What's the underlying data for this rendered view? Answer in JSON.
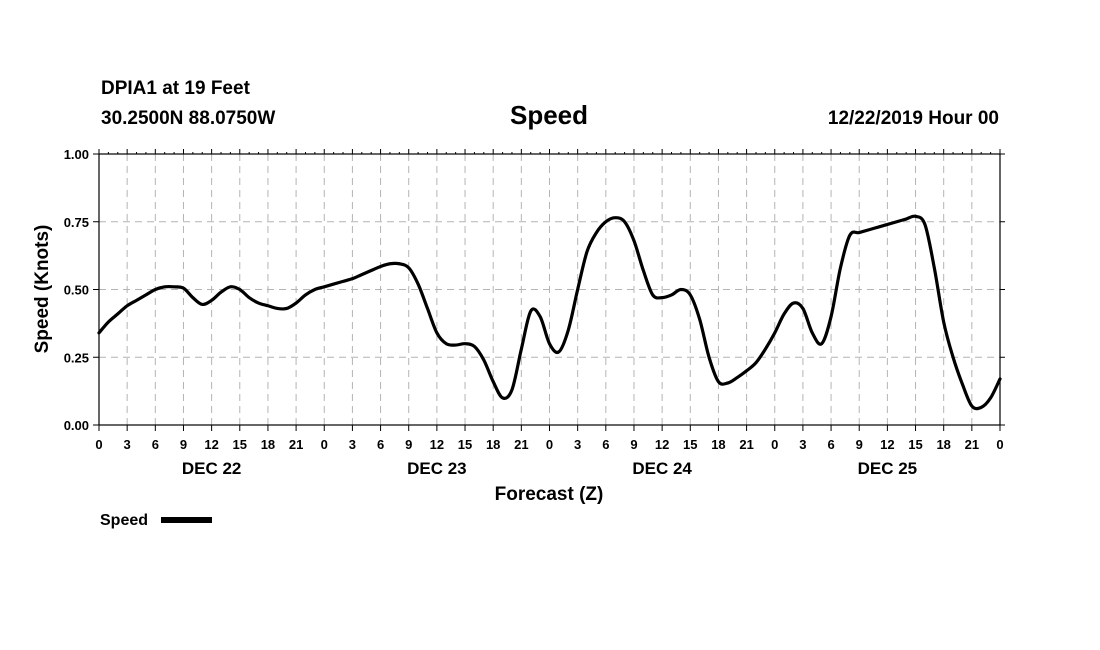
{
  "header": {
    "station": "DPIA1 at 19 Feet",
    "location": "30.2500N 88.0750W",
    "title": "Speed",
    "run": "12/22/2019 Hour 00"
  },
  "chart_data": {
    "type": "line",
    "title": "Speed",
    "xlabel": "Forecast (Z)",
    "ylabel": "Speed (Knots)",
    "x_unit": "forecast hour from 12/22/2019 00Z",
    "xlim": [
      0,
      96
    ],
    "ylim": [
      0,
      1
    ],
    "grid": true,
    "y_ticks": [
      "0.00",
      "0.25",
      "0.50",
      "0.75",
      "1.00"
    ],
    "y_tick_values": [
      0,
      0.25,
      0.5,
      0.75,
      1.0
    ],
    "x_tick_labels": [
      "0",
      "3",
      "6",
      "9",
      "12",
      "15",
      "18",
      "21",
      "0",
      "3",
      "6",
      "9",
      "12",
      "15",
      "18",
      "21",
      "0",
      "3",
      "6",
      "9",
      "12",
      "15",
      "18",
      "21",
      "0",
      "3",
      "6",
      "9",
      "12",
      "15",
      "18",
      "21",
      "0"
    ],
    "day_labels": [
      {
        "label": "DEC 22",
        "hour": 12
      },
      {
        "label": "DEC 23",
        "hour": 36
      },
      {
        "label": "DEC 24",
        "hour": 60
      },
      {
        "label": "DEC 25",
        "hour": 84
      }
    ],
    "legend_placement": "bottom-left",
    "series": [
      {
        "name": "Speed",
        "color": "#000000",
        "x": [
          0,
          1,
          2,
          3,
          4,
          5,
          6,
          7,
          8,
          9,
          10,
          11,
          12,
          13,
          14,
          15,
          16,
          17,
          18,
          19,
          20,
          21,
          22,
          23,
          24,
          25,
          26,
          27,
          28,
          29,
          30,
          31,
          32,
          33,
          34,
          35,
          36,
          37,
          38,
          39,
          40,
          41,
          42,
          43,
          44,
          45,
          46,
          47,
          48,
          49,
          50,
          51,
          52,
          53,
          54,
          55,
          56,
          57,
          58,
          59,
          60,
          61,
          62,
          63,
          64,
          65,
          66,
          67,
          68,
          69,
          70,
          71,
          72,
          73,
          74,
          75,
          76,
          77,
          78,
          79,
          80,
          81,
          82,
          83,
          84,
          85,
          86,
          87,
          88,
          89,
          90,
          91,
          92,
          93,
          94,
          95,
          96
        ],
        "values": [
          0.34,
          0.38,
          0.41,
          0.44,
          0.46,
          0.48,
          0.5,
          0.51,
          0.51,
          0.505,
          0.47,
          0.445,
          0.46,
          0.49,
          0.51,
          0.5,
          0.47,
          0.45,
          0.44,
          0.43,
          0.43,
          0.45,
          0.48,
          0.5,
          0.51,
          0.52,
          0.53,
          0.54,
          0.555,
          0.57,
          0.585,
          0.595,
          0.595,
          0.58,
          0.52,
          0.43,
          0.34,
          0.3,
          0.295,
          0.3,
          0.29,
          0.24,
          0.16,
          0.1,
          0.13,
          0.28,
          0.42,
          0.4,
          0.3,
          0.27,
          0.35,
          0.5,
          0.64,
          0.71,
          0.75,
          0.765,
          0.75,
          0.68,
          0.57,
          0.48,
          0.47,
          0.48,
          0.5,
          0.48,
          0.39,
          0.25,
          0.16,
          0.155,
          0.175,
          0.2,
          0.23,
          0.28,
          0.34,
          0.41,
          0.45,
          0.43,
          0.34,
          0.3,
          0.4,
          0.58,
          0.7,
          0.71,
          0.72,
          0.73,
          0.74,
          0.75,
          0.76,
          0.77,
          0.74,
          0.58,
          0.38,
          0.25,
          0.15,
          0.07,
          0.065,
          0.1,
          0.17
        ]
      }
    ]
  },
  "legend": {
    "label": "Speed",
    "color": "#000000"
  }
}
